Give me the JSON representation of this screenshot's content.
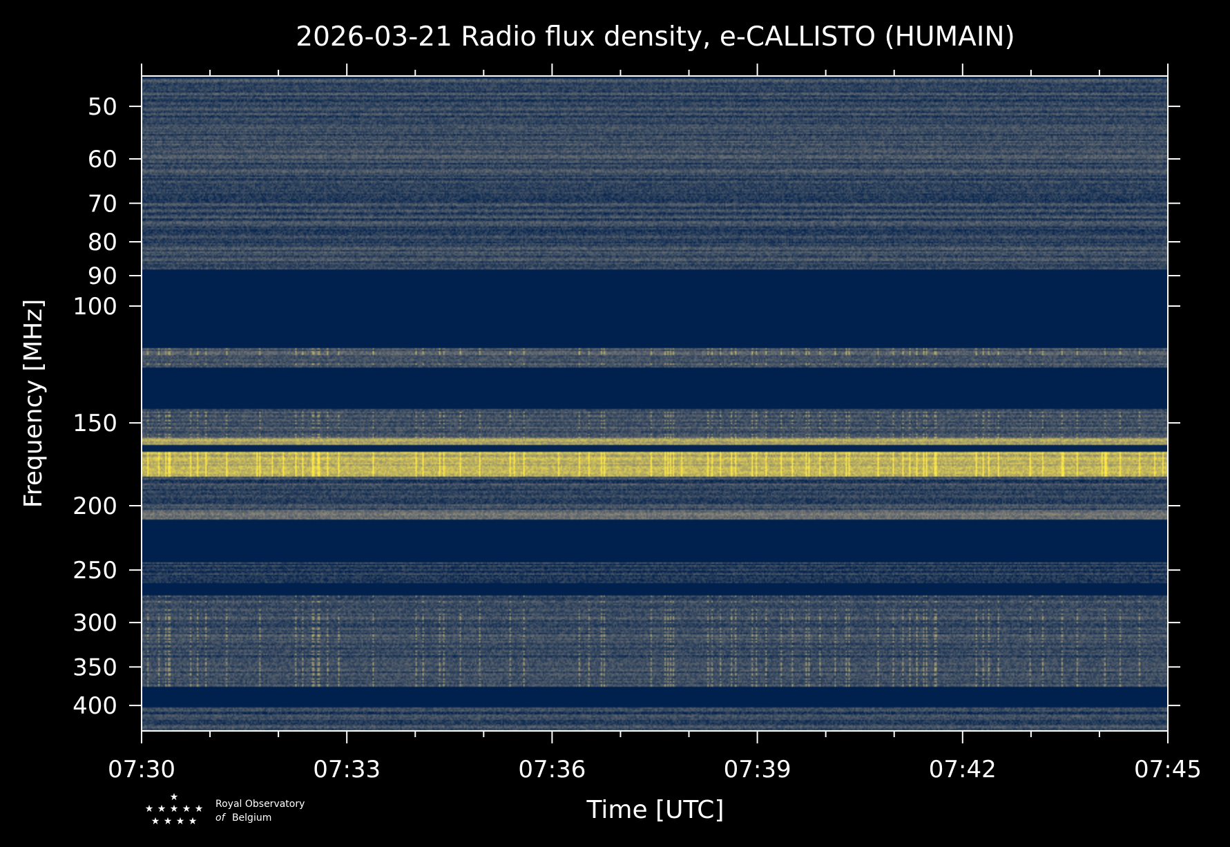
{
  "chart_data": {
    "type": "heatmap",
    "title": "2026-03-21 Radio flux density, e-CALLISTO (HUMAIN)",
    "xlabel": "Time [UTC]",
    "ylabel": "Frequency [MHz]",
    "x_tick_labels": [
      "07:30",
      "07:33",
      "07:36",
      "07:39",
      "07:42",
      "07:45"
    ],
    "x_tick_minutes": [
      0,
      3,
      6,
      9,
      12,
      15
    ],
    "x_minor_step_minutes": 1,
    "xlim_minutes": [
      0,
      15
    ],
    "y_scale": "log",
    "y_ticks": [
      50,
      60,
      70,
      80,
      90,
      100,
      150,
      200,
      250,
      300,
      350,
      400
    ],
    "ylim_mhz": [
      45,
      437
    ],
    "y_inverted": true,
    "colormap": "cividis",
    "colors": {
      "low": "#00204d",
      "mid": "#7b7b78",
      "high": "#ffe945"
    },
    "bands": [
      {
        "from_mhz": 45.5,
        "to_mhz": 88,
        "level": 0.22,
        "texture": "striped"
      },
      {
        "from_mhz": 88,
        "to_mhz": 116,
        "level": 0.0,
        "texture": "flat"
      },
      {
        "from_mhz": 116,
        "to_mhz": 124,
        "level": 0.32,
        "texture": "speckled"
      },
      {
        "from_mhz": 124,
        "to_mhz": 143,
        "level": 0.0,
        "texture": "flat"
      },
      {
        "from_mhz": 143,
        "to_mhz": 158,
        "level": 0.28,
        "texture": "speckled"
      },
      {
        "from_mhz": 158,
        "to_mhz": 162,
        "level": 0.7,
        "texture": "line"
      },
      {
        "from_mhz": 166,
        "to_mhz": 181,
        "level": 0.75,
        "texture": "bright"
      },
      {
        "from_mhz": 181,
        "to_mhz": 203,
        "level": 0.22,
        "texture": "striped"
      },
      {
        "from_mhz": 203,
        "to_mhz": 210,
        "level": 0.42,
        "texture": "line"
      },
      {
        "from_mhz": 210,
        "to_mhz": 243,
        "level": 0.0,
        "texture": "flat"
      },
      {
        "from_mhz": 243,
        "to_mhz": 262,
        "level": 0.15,
        "texture": "striped"
      },
      {
        "from_mhz": 262,
        "to_mhz": 273,
        "level": 0.0,
        "texture": "flat"
      },
      {
        "from_mhz": 273,
        "to_mhz": 375,
        "level": 0.24,
        "texture": "speckled"
      },
      {
        "from_mhz": 375,
        "to_mhz": 403,
        "level": 0.0,
        "texture": "flat"
      },
      {
        "from_mhz": 403,
        "to_mhz": 437,
        "level": 0.2,
        "texture": "striped"
      }
    ]
  },
  "logo": {
    "line1": "Royal Observatory",
    "line2_italic": "of",
    "line2": "Belgium"
  }
}
